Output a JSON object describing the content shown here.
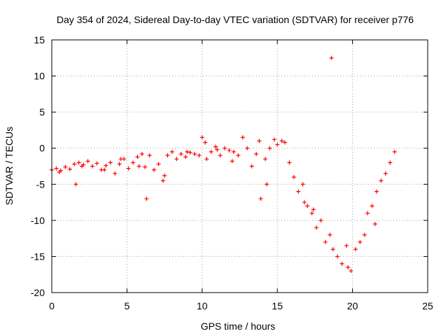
{
  "chart_data": {
    "type": "scatter",
    "title": "Day 354 of 2024, Sidereal Day-to-day VTEC variation (SDTVAR) for receiver p776",
    "xlabel": "GPS time / hours",
    "ylabel": "SDTVAR / TECUs",
    "xlim": [
      0,
      25
    ],
    "ylim": [
      -20,
      15
    ],
    "xticks": [
      "0",
      "5",
      "10",
      "15",
      "20",
      "25"
    ],
    "yticks": [
      "15",
      "10",
      "5",
      "0",
      "-5",
      "-10",
      "-15",
      "-20"
    ],
    "grid": true,
    "marker": "+",
    "color": "#ff0000",
    "series": [
      {
        "name": "SDTVAR",
        "x": [
          0.0,
          0.3,
          0.6,
          0.9,
          1.2,
          1.5,
          1.6,
          1.8,
          2.1,
          2.4,
          2.7,
          3.0,
          3.3,
          3.6,
          3.9,
          4.2,
          4.5,
          4.8,
          5.1,
          5.4,
          5.7,
          6.0,
          6.2,
          6.5,
          6.8,
          7.1,
          7.4,
          7.7,
          8.0,
          8.3,
          8.6,
          8.9,
          9.2,
          9.5,
          9.8,
          10.0,
          10.3,
          10.6,
          10.9,
          11.2,
          11.5,
          11.8,
          12.1,
          12.4,
          12.7,
          13.0,
          13.3,
          13.6,
          13.8,
          14.2,
          14.5,
          14.8,
          15.0,
          15.3,
          15.5,
          15.8,
          16.1,
          16.4,
          16.7,
          17.0,
          17.3,
          17.6,
          17.9,
          18.2,
          18.5,
          18.7,
          19.0,
          19.3,
          19.6,
          19.9,
          20.2,
          20.5,
          20.8,
          21.0,
          21.3,
          21.6,
          21.9,
          22.2,
          22.5,
          22.8,
          18.6,
          6.3,
          7.5,
          9.0,
          10.2,
          12.0,
          13.9,
          14.3,
          16.8,
          17.4,
          19.7,
          21.5,
          2.0,
          0.5,
          3.5,
          4.6,
          5.8,
          11.0
        ],
        "y": [
          -3.0,
          -2.8,
          -3.1,
          -2.6,
          -2.9,
          -2.2,
          -5.0,
          -2.0,
          -2.3,
          -1.8,
          -2.5,
          -2.1,
          -3.0,
          -2.4,
          -2.0,
          -3.5,
          -2.2,
          -1.5,
          -2.8,
          -2.0,
          -1.2,
          -0.8,
          -2.6,
          -1.0,
          -3.0,
          -2.2,
          -4.5,
          -1.0,
          -0.5,
          -1.5,
          -0.8,
          -1.2,
          -0.6,
          -0.8,
          -1.0,
          1.5,
          -1.5,
          -0.5,
          0.2,
          -1.0,
          0.0,
          -0.3,
          -0.5,
          -1.0,
          1.5,
          0.0,
          -2.5,
          -0.8,
          1.0,
          -1.5,
          0.0,
          1.2,
          0.5,
          1.0,
          0.8,
          -2.0,
          -4.0,
          -6.0,
          -5.0,
          -8.0,
          -9.0,
          -11.0,
          -10.0,
          -13.0,
          -12.0,
          -14.0,
          -15.0,
          -16.0,
          -13.5,
          -17.0,
          -14.0,
          -13.0,
          -12.0,
          -9.0,
          -8.0,
          -6.0,
          -4.5,
          -3.5,
          -2.0,
          -0.5,
          12.5,
          -7.0,
          -3.8,
          -0.5,
          0.8,
          -1.8,
          -7.0,
          -5.0,
          -7.5,
          -8.5,
          -16.5,
          -10.5,
          -2.5,
          -3.3,
          -3.0,
          -1.5,
          -2.5,
          -0.2
        ]
      }
    ]
  }
}
